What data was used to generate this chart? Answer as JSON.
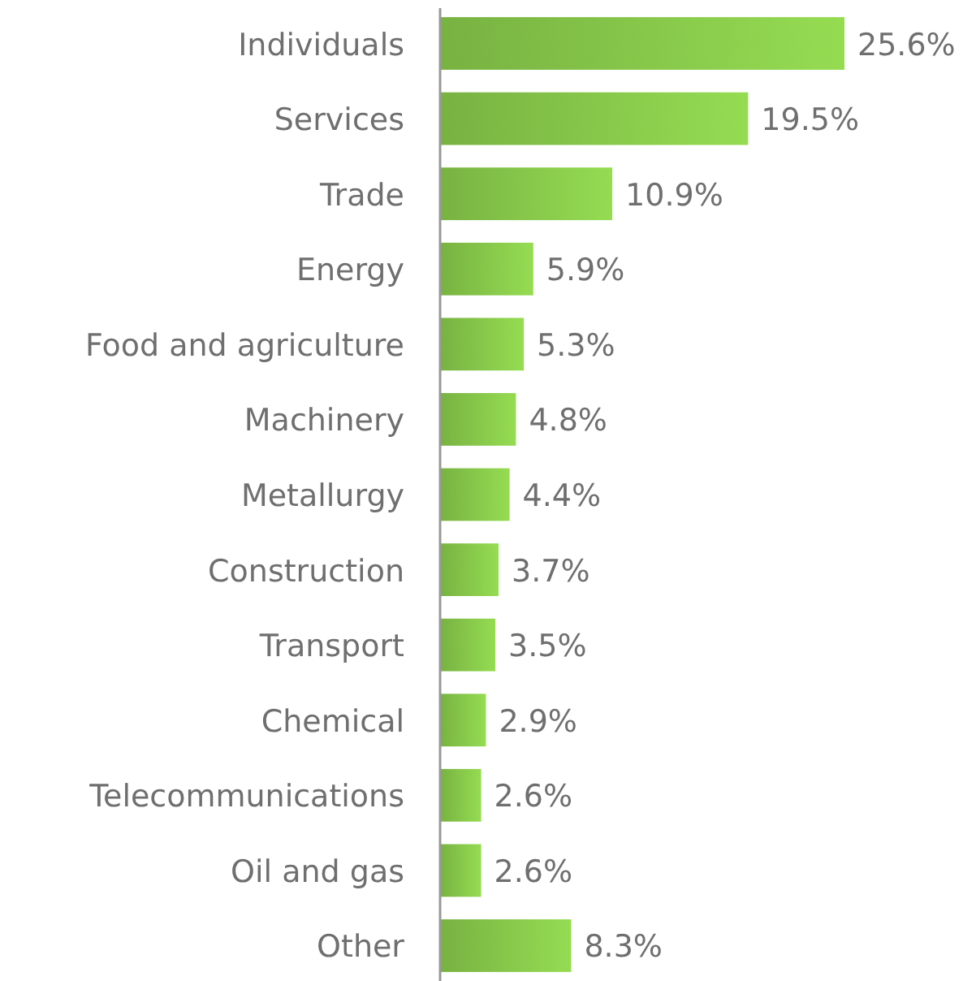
{
  "chart_data": {
    "type": "bar",
    "orientation": "horizontal",
    "color": "#86c64a",
    "categories": [
      "Individuals",
      "Services",
      "Trade",
      "Energy",
      "Food and agriculture",
      "Machinery",
      "Metallurgy",
      "Construction",
      "Transport",
      "Chemical",
      "Telecommunications",
      "Oil and gas",
      "Other"
    ],
    "values": [
      25.6,
      19.5,
      10.9,
      5.9,
      5.3,
      4.8,
      4.4,
      3.7,
      3.5,
      2.9,
      2.6,
      2.6,
      8.3
    ],
    "value_labels": [
      "25.6%",
      "19.5%",
      "10.9%",
      "5.9%",
      "5.3%",
      "4.8%",
      "4.4%",
      "3.7%",
      "3.5%",
      "2.9%",
      "2.6%",
      "2.6%",
      "8.3%"
    ]
  }
}
